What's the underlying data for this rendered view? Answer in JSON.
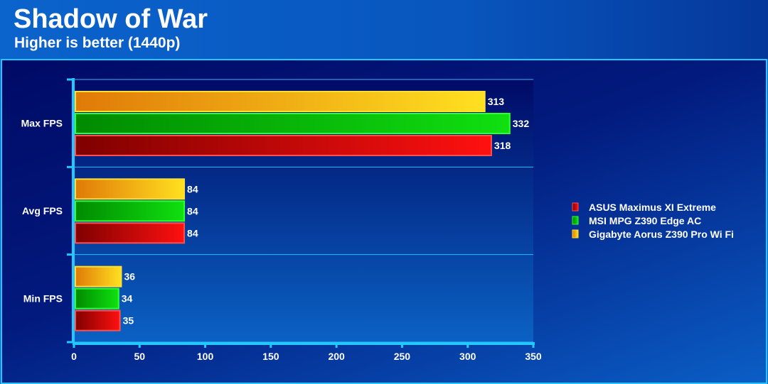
{
  "chart_data": {
    "type": "bar",
    "orientation": "horizontal",
    "title": "Shadow of War",
    "subtitle": "Higher is better (1440p)",
    "categories": [
      "Max FPS",
      "Avg FPS",
      "Min FPS"
    ],
    "series": [
      {
        "name": "Gigabyte Aorus Z390 Pro Wi Fi",
        "color": "#f0a010",
        "values": [
          313,
          84,
          36
        ]
      },
      {
        "name": "MSI MPG Z390 Edge AC",
        "color": "#10b010",
        "values": [
          332,
          84,
          34
        ]
      },
      {
        "name": "ASUS Maximus XI Extreme",
        "color": "#d01010",
        "values": [
          318,
          84,
          35
        ]
      }
    ],
    "legend_order": [
      "ASUS Maximus XI Extreme",
      "MSI MPG Z390 Edge AC",
      "Gigabyte Aorus Z390 Pro Wi Fi"
    ],
    "xlim": [
      0,
      350
    ],
    "xticks": [
      0,
      50,
      100,
      150,
      200,
      250,
      300,
      350
    ],
    "xlabel": "",
    "ylabel": "",
    "grid": true,
    "legend_position": "right"
  }
}
